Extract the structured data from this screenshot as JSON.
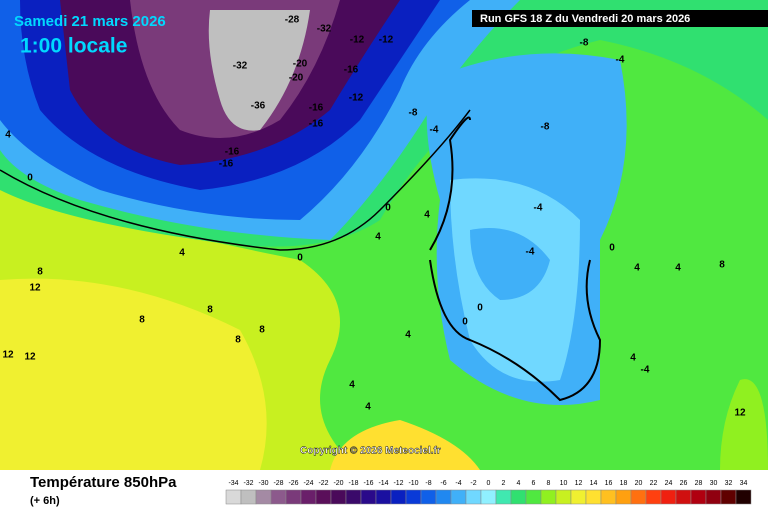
{
  "header": {
    "date": "Samedi 21 mars 2026",
    "time": "1:00 locale",
    "run": "Run GFS 18 Z du Vendredi 20 mars 2026"
  },
  "copyright": "Copyright © 2026 Meteociel.fr",
  "legend": {
    "title": "Température 850hPa",
    "subtitle": "(+ 6h)",
    "scale": [
      {
        "value": -34,
        "color": "#d9d9d9"
      },
      {
        "value": -32,
        "color": "#bfbfbf"
      },
      {
        "value": -30,
        "color": "#a48aa4"
      },
      {
        "value": -28,
        "color": "#8c5a8c"
      },
      {
        "value": -26,
        "color": "#7a3a7a"
      },
      {
        "value": -24,
        "color": "#6a1f6a"
      },
      {
        "value": -22,
        "color": "#5a0f5a"
      },
      {
        "value": -20,
        "color": "#4a0a5a"
      },
      {
        "value": -18,
        "color": "#3a0a6a"
      },
      {
        "value": -16,
        "color": "#2a0a8a"
      },
      {
        "value": -14,
        "color": "#1a10a0"
      },
      {
        "value": -12,
        "color": "#0a20c0"
      },
      {
        "value": -10,
        "color": "#0a3ad8"
      },
      {
        "value": -8,
        "color": "#1060e8"
      },
      {
        "value": -6,
        "color": "#2088f0"
      },
      {
        "value": -4,
        "color": "#40b0f8"
      },
      {
        "value": -2,
        "color": "#70d8ff"
      },
      {
        "value": 0,
        "color": "#90f0ff"
      },
      {
        "value": 2,
        "color": "#40e8b0"
      },
      {
        "value": 4,
        "color": "#30e070"
      },
      {
        "value": 6,
        "color": "#50e840"
      },
      {
        "value": 8,
        "color": "#90f020"
      },
      {
        "value": 10,
        "color": "#c8f020"
      },
      {
        "value": 12,
        "color": "#f0f030"
      },
      {
        "value": 14,
        "color": "#ffe030"
      },
      {
        "value": 16,
        "color": "#ffc020"
      },
      {
        "value": 18,
        "color": "#ffa010"
      },
      {
        "value": 20,
        "color": "#ff7010"
      },
      {
        "value": 22,
        "color": "#ff4010"
      },
      {
        "value": 24,
        "color": "#f02010"
      },
      {
        "value": 26,
        "color": "#d01010"
      },
      {
        "value": 28,
        "color": "#b00010"
      },
      {
        "value": 30,
        "color": "#900010"
      },
      {
        "value": 32,
        "color": "#600000"
      },
      {
        "value": 34,
        "color": "#200000"
      }
    ]
  },
  "contour_labels": [
    4,
    0,
    4,
    8,
    12,
    12,
    12,
    8,
    8,
    8,
    8,
    4,
    4,
    0,
    4,
    0,
    4,
    4,
    0,
    0,
    -4,
    -4,
    -8,
    -8,
    -4,
    -12,
    -12,
    -16,
    -12,
    -16,
    -16,
    -16,
    -16,
    -32,
    -36,
    -20,
    -20,
    -28,
    -32,
    -8,
    -4,
    0,
    4,
    4,
    -4,
    12,
    4,
    8
  ]
}
